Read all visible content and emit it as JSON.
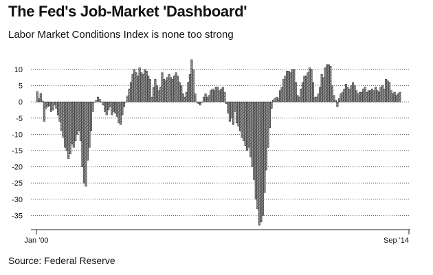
{
  "title": "The Fed's Job-Market 'Dashboard'",
  "subtitle": "Labor Market Conditions Index is none too strong",
  "source": "Source: Federal Reserve",
  "colors": {
    "bar_fill": "#9a9a9a",
    "bar_stroke": "#222222",
    "grid": "#555555",
    "axis": "#222222"
  },
  "chart_data": {
    "type": "bar",
    "title": "The Fed's Job-Market 'Dashboard'",
    "subtitle": "Labor Market Conditions Index is none too strong",
    "x_start": "Jan '00",
    "x_end": "Sep '14",
    "x_tick_labels": [
      "Jan '00",
      "Sep '14"
    ],
    "frequency": "monthly",
    "y_ticks": [
      10,
      5,
      0,
      -5,
      -10,
      -15,
      -20,
      -25,
      -30,
      -35
    ],
    "ylim": [
      -38.5,
      13
    ],
    "grid": "horizontal dotted",
    "values": [
      3.2,
      1.0,
      2.6,
      0.3,
      -6.0,
      -2.0,
      -1.5,
      -1.2,
      -3.0,
      -2.5,
      -1.0,
      -2.0,
      -4.0,
      -6.0,
      -9.0,
      -11.0,
      -14.0,
      -15.0,
      -17.5,
      -16.0,
      -13.0,
      -14.0,
      -12.0,
      -10.0,
      -9.0,
      -12.0,
      -20.0,
      -25.0,
      -26.0,
      -18.0,
      -14.0,
      -9.0,
      -3.0,
      0.0,
      0.5,
      1.5,
      0.8,
      0.0,
      -1.0,
      -3.0,
      -4.0,
      -2.5,
      -1.5,
      -4.0,
      -3.0,
      -3.5,
      -4.5,
      -6.5,
      -7.0,
      -4.0,
      -1.5,
      0.0,
      1.8,
      4.0,
      6.0,
      8.5,
      10.0,
      9.0,
      8.0,
      10.5,
      9.0,
      8.5,
      10.0,
      9.5,
      8.0,
      7.0,
      1.5,
      4.5,
      7.0,
      5.0,
      3.5,
      4.5,
      9.0,
      7.0,
      6.5,
      7.5,
      8.5,
      7.5,
      7.0,
      8.0,
      9.0,
      8.0,
      6.0,
      5.0,
      2.5,
      1.5,
      3.0,
      6.0,
      8.5,
      13.0,
      10.0,
      2.5,
      0.0,
      -0.5,
      -1.0,
      0.0,
      1.5,
      2.5,
      1.5,
      2.0,
      3.5,
      4.0,
      3.5,
      4.5,
      4.5,
      3.5,
      4.0,
      4.5,
      3.0,
      -0.5,
      -3.5,
      -6.0,
      -5.0,
      -7.0,
      -3.0,
      -6.5,
      -7.5,
      -9.0,
      -11.0,
      -12.0,
      -13.5,
      -15.0,
      -14.0,
      -17.0,
      -20.0,
      -24.0,
      -30.0,
      -33.0,
      -38.0,
      -37.0,
      -35.0,
      -28.0,
      -21.0,
      -14.0,
      -8.0,
      -2.0,
      0.5,
      1.0,
      1.5,
      1.0,
      3.5,
      4.5,
      7.0,
      8.0,
      9.5,
      9.5,
      9.0,
      10.0,
      10.0,
      6.0,
      2.0,
      1.5,
      4.0,
      6.0,
      8.0,
      8.0,
      9.0,
      10.5,
      10.0,
      6.0,
      1.5,
      1.5,
      2.5,
      4.5,
      8.5,
      7.5,
      10.5,
      11.5,
      11.5,
      11.0,
      5.0,
      2.0,
      0.5,
      -1.5,
      1.0,
      2.5,
      3.0,
      4.0,
      5.5,
      4.5,
      4.0,
      5.0,
      6.0,
      5.0,
      3.5,
      2.5,
      3.0,
      3.0,
      4.0,
      4.5,
      3.0,
      3.5,
      3.5,
      4.0,
      3.5,
      4.5,
      3.5,
      3.0,
      4.5,
      5.0,
      4.0,
      7.0,
      6.5,
      6.0,
      3.5,
      2.5,
      3.0,
      2.0,
      2.5,
      3.0
    ]
  }
}
